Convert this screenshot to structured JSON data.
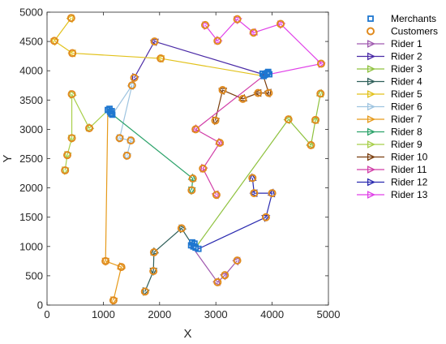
{
  "chart_data": {
    "type": "scatter",
    "xlabel": "X",
    "ylabel": "Y",
    "xlim": [
      0,
      5000
    ],
    "ylim": [
      0,
      5000
    ],
    "xticks": [
      0,
      1000,
      2000,
      3000,
      4000,
      5000
    ],
    "yticks": [
      0,
      500,
      1000,
      1500,
      2000,
      2500,
      3000,
      3500,
      4000,
      4500,
      5000
    ],
    "grid": false,
    "legend_position": "outside-right",
    "merchant_color": "#1f77d0",
    "customer_color": "#e08a1e",
    "merchants": {
      "name": "Merchants",
      "points": [
        [
          1080,
          3330
        ],
        [
          1120,
          3300
        ],
        [
          1140,
          3270
        ],
        [
          1160,
          3250
        ],
        [
          1110,
          3350
        ],
        [
          1150,
          3310
        ],
        [
          3830,
          3950
        ],
        [
          3870,
          3930
        ],
        [
          3910,
          3960
        ],
        [
          3950,
          3940
        ],
        [
          3850,
          3910
        ],
        [
          3930,
          3980
        ],
        [
          2560,
          1020
        ],
        [
          2600,
          1000
        ],
        [
          2640,
          980
        ],
        [
          2690,
          960
        ],
        [
          2620,
          1050
        ],
        [
          2580,
          1070
        ]
      ]
    },
    "customers": {
      "name": "Customers",
      "points": [
        [
          130,
          4510
        ],
        [
          430,
          4900
        ],
        [
          450,
          4300
        ],
        [
          2020,
          4210
        ],
        [
          1910,
          4500
        ],
        [
          1550,
          3880
        ],
        [
          1510,
          3750
        ],
        [
          440,
          3600
        ],
        [
          750,
          3020
        ],
        [
          440,
          2850
        ],
        [
          360,
          2560
        ],
        [
          320,
          2300
        ],
        [
          1290,
          2850
        ],
        [
          1490,
          2810
        ],
        [
          1420,
          2550
        ],
        [
          2590,
          2160
        ],
        [
          2570,
          1960
        ],
        [
          1040,
          750
        ],
        [
          1320,
          650
        ],
        [
          1180,
          80
        ],
        [
          2390,
          1310
        ],
        [
          1900,
          900
        ],
        [
          1890,
          580
        ],
        [
          1740,
          230
        ],
        [
          3030,
          390
        ],
        [
          3160,
          510
        ],
        [
          3380,
          760
        ],
        [
          3890,
          1500
        ],
        [
          3680,
          1910
        ],
        [
          4000,
          1910
        ],
        [
          2640,
          3000
        ],
        [
          3070,
          2770
        ],
        [
          2770,
          2330
        ],
        [
          3010,
          1880
        ],
        [
          3650,
          2170
        ],
        [
          3030,
          4510
        ],
        [
          2810,
          4780
        ],
        [
          3380,
          4880
        ],
        [
          3670,
          4650
        ],
        [
          4150,
          4800
        ],
        [
          4870,
          4120
        ],
        [
          2990,
          3150
        ],
        [
          3120,
          3670
        ],
        [
          3480,
          3520
        ],
        [
          3750,
          3620
        ],
        [
          3940,
          3620
        ],
        [
          4290,
          3170
        ],
        [
          4690,
          2730
        ],
        [
          4770,
          3160
        ],
        [
          4860,
          3610
        ]
      ]
    },
    "series": [
      {
        "name": "Rider 1",
        "color": "#a05ab0",
        "points": [
          [
            2560,
            1020
          ],
          [
            3030,
            390
          ],
          [
            3160,
            510
          ],
          [
            3380,
            760
          ]
        ]
      },
      {
        "name": "Rider 2",
        "color": "#4a2aa6",
        "points": [
          [
            3870,
            3930
          ],
          [
            1910,
            4500
          ],
          [
            1550,
            3880
          ]
        ]
      },
      {
        "name": "Rider 3",
        "color": "#8fc23f",
        "points": [
          [
            2640,
            980
          ],
          [
            4290,
            3170
          ],
          [
            4690,
            2730
          ],
          [
            4770,
            3160
          ],
          [
            4860,
            3610
          ]
        ]
      },
      {
        "name": "Rider 4",
        "color": "#2f5f5a",
        "points": [
          [
            2600,
            1000
          ],
          [
            2390,
            1310
          ],
          [
            1900,
            900
          ],
          [
            1890,
            580
          ],
          [
            1740,
            230
          ]
        ]
      },
      {
        "name": "Rider 5",
        "color": "#e2c21c",
        "points": [
          [
            3850,
            3910
          ],
          [
            2020,
            4210
          ],
          [
            450,
            4300
          ],
          [
            130,
            4510
          ],
          [
            430,
            4900
          ]
        ]
      },
      {
        "name": "Rider 6",
        "color": "#9ec4e0",
        "points": [
          [
            1160,
            3250
          ],
          [
            1510,
            3750
          ],
          [
            1290,
            2850
          ],
          [
            1490,
            2810
          ],
          [
            1420,
            2550
          ]
        ]
      },
      {
        "name": "Rider 7",
        "color": "#e69a1a",
        "points": [
          [
            1080,
            3330
          ],
          [
            1040,
            750
          ],
          [
            1320,
            650
          ],
          [
            1180,
            80
          ]
        ]
      },
      {
        "name": "Rider 8",
        "color": "#2da36b",
        "points": [
          [
            1140,
            3270
          ],
          [
            2590,
            2160
          ],
          [
            2570,
            1960
          ]
        ]
      },
      {
        "name": "Rider 9",
        "color": "#a8cf4a",
        "points": [
          [
            1110,
            3350
          ],
          [
            750,
            3020
          ],
          [
            440,
            3600
          ],
          [
            440,
            2850
          ],
          [
            360,
            2560
          ],
          [
            320,
            2300
          ]
        ]
      },
      {
        "name": "Rider 10",
        "color": "#7a3e0e",
        "points": [
          [
            3830,
            3950
          ],
          [
            3940,
            3620
          ],
          [
            3750,
            3620
          ],
          [
            3480,
            3520
          ],
          [
            3120,
            3670
          ],
          [
            2990,
            3150
          ]
        ]
      },
      {
        "name": "Rider 11",
        "color": "#d13ea8",
        "points": [
          [
            3910,
            3960
          ],
          [
            2640,
            3000
          ],
          [
            3070,
            2770
          ],
          [
            2770,
            2330
          ],
          [
            3010,
            1880
          ]
        ]
      },
      {
        "name": "Rider 12",
        "color": "#2b2bb0",
        "points": [
          [
            2690,
            960
          ],
          [
            3890,
            1500
          ],
          [
            4000,
            1910
          ],
          [
            3680,
            1910
          ],
          [
            3650,
            2170
          ]
        ]
      },
      {
        "name": "Rider 13",
        "color": "#e040e8",
        "points": [
          [
            3950,
            3940
          ],
          [
            4870,
            4120
          ],
          [
            4150,
            4800
          ],
          [
            3670,
            4650
          ],
          [
            3380,
            4880
          ],
          [
            3030,
            4510
          ],
          [
            2810,
            4780
          ]
        ]
      }
    ]
  }
}
